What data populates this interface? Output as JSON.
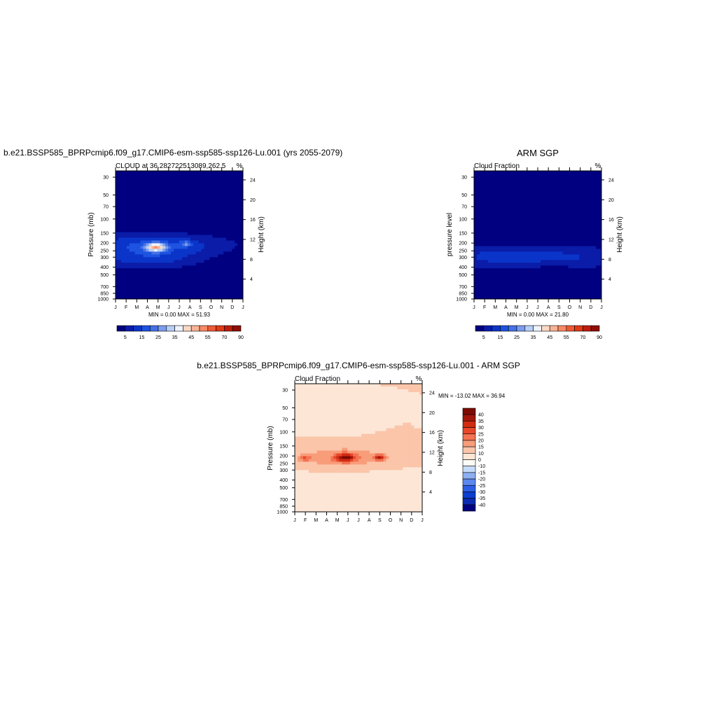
{
  "figure": {
    "left_title": "b.e21.BSSP585_BPRPcmip6.f09_g17.CMIP6-esm-ssp585-ssp126-Lu.001 (yrs 2055-2079)",
    "right_title": "ARM SGP",
    "diff_title": "b.e21.BSSP585_BPRPcmip6.f09_g17.CMIP6-esm-ssp585-ssp126-Lu.001 - ARM SGP"
  },
  "colors": {
    "seq": [
      "#000080",
      "#0a1ca8",
      "#0b35c9",
      "#1d53e0",
      "#4571e6",
      "#7c9ced",
      "#b6cff5",
      "#eef3fb",
      "#fbd8c4",
      "#f8b396",
      "#f68a66",
      "#ee5a36",
      "#e03a16",
      "#bd1d0c",
      "#8f0e06"
    ],
    "div": [
      "#000080",
      "#0a2aaf",
      "#0c3fd0",
      "#2d5fe6",
      "#5c88ed",
      "#8db0f2",
      "#c5dbf9",
      "#fdfbf5",
      "#fde6d6",
      "#fbc5aa",
      "#f89d7a",
      "#f37352",
      "#e9472b",
      "#d12c12",
      "#a3160a",
      "#7d0b04"
    ]
  },
  "chart_data": [
    {
      "type": "heatmap",
      "name": "model",
      "title": "CLOUD at 36.282722513089,262.5",
      "units": "%",
      "ylabel": "Pressure (mb)",
      "ylabel_right": "Height (km)",
      "x_ticks": [
        "J",
        "F",
        "M",
        "A",
        "M",
        "J",
        "J",
        "A",
        "S",
        "O",
        "N",
        "D",
        "J"
      ],
      "y_ticks": [
        30,
        50,
        70,
        100,
        150,
        200,
        250,
        300,
        400,
        500,
        700,
        850,
        1000
      ],
      "height_ticks": [
        4,
        8,
        12,
        16,
        20,
        24
      ],
      "ylim": [
        1000,
        25
      ],
      "stats": "MIN =   0.00 MAX =  51.93",
      "colorbar_levels": [
        5,
        15,
        25,
        35,
        45,
        55,
        70,
        90
      ],
      "levels": [
        0,
        5,
        10,
        15,
        20,
        25,
        30,
        35,
        40,
        45,
        50,
        55,
        60,
        70,
        80,
        90
      ],
      "field": {
        "bg": 1,
        "blobs": [
          {
            "c": [
              3.5,
              210
            ],
            "s": [
              7,
              0.32
            ],
            "a": 14
          },
          {
            "c": [
              3.8,
              225
            ],
            "s": [
              0.9,
              0.12
            ],
            "a": 34
          },
          {
            "c": [
              6.6,
              205
            ],
            "s": [
              0.5,
              0.08
            ],
            "a": 14
          },
          {
            "c": [
              3.0,
              320
            ],
            "s": [
              5,
              0.3
            ],
            "a": 10
          },
          {
            "c": [
              6.0,
              760
            ],
            "s": [
              5,
              0.3
            ],
            "a": -6
          }
        ]
      }
    },
    {
      "type": "heatmap",
      "name": "obs",
      "title": "Cloud Fraction",
      "units": "%",
      "ylabel": "pressure level",
      "ylabel_right": "Height (km)",
      "x_ticks": [
        "J",
        "F",
        "M",
        "A",
        "M",
        "J",
        "J",
        "A",
        "S",
        "O",
        "N",
        "D",
        "J"
      ],
      "y_ticks": [
        30,
        50,
        70,
        100,
        150,
        200,
        250,
        300,
        400,
        500,
        700,
        850,
        1000
      ],
      "height_ticks": [
        4,
        8,
        12,
        16,
        20,
        24
      ],
      "ylim": [
        1000,
        25
      ],
      "stats": "MIN =   0.00 MAX =  21.80",
      "colorbar_levels": [
        5,
        15,
        25,
        35,
        45,
        55,
        70,
        90
      ],
      "levels": [
        0,
        5,
        10,
        15,
        20,
        25,
        30,
        35,
        40,
        45,
        50,
        55,
        60,
        70,
        80,
        90
      ],
      "field": {
        "bg": 1,
        "blobs": [
          {
            "c": [
              6,
              300
            ],
            "s": [
              9,
              0.35
            ],
            "a": 11
          },
          {
            "c": [
              1.5,
              280
            ],
            "s": [
              2,
              0.25
            ],
            "a": 3
          },
          {
            "c": [
              7.5,
              450
            ],
            "s": [
              1.2,
              0.3
            ],
            "a": -5
          },
          {
            "c": [
              6.5,
              760
            ],
            "s": [
              0.5,
              0.08
            ],
            "a": -4
          }
        ]
      }
    },
    {
      "type": "heatmap",
      "name": "diff",
      "title": "Cloud Fraction",
      "units": "%",
      "ylabel": "Pressure (mb)",
      "ylabel_right": "Height (km)",
      "x_ticks": [
        "J",
        "F",
        "M",
        "A",
        "M",
        "J",
        "J",
        "A",
        "S",
        "O",
        "N",
        "D",
        "J"
      ],
      "y_ticks": [
        30,
        50,
        70,
        100,
        150,
        200,
        250,
        300,
        400,
        500,
        700,
        850,
        1000
      ],
      "height_ticks": [
        4,
        8,
        12,
        16,
        20,
        24
      ],
      "ylim": [
        1000,
        25
      ],
      "stats": "MIN = -13.02 MAX =  36.94",
      "colorbar_levels": [
        40,
        35,
        30,
        25,
        20,
        15,
        10,
        0,
        -10,
        -15,
        -20,
        -25,
        -30,
        -35,
        -40
      ],
      "levels": [
        -40,
        -35,
        -30,
        -25,
        -20,
        -15,
        -10,
        -5,
        5,
        10,
        15,
        20,
        25,
        30,
        35,
        40
      ],
      "field": {
        "bg": 5,
        "blobs": [
          {
            "c": [
              4.5,
              210
            ],
            "s": [
              4.5,
              0.3
            ],
            "a": 9
          },
          {
            "c": [
              4.8,
              210
            ],
            "s": [
              0.9,
              0.12
            ],
            "a": 24
          },
          {
            "c": [
              8.0,
              210
            ],
            "s": [
              0.5,
              0.08
            ],
            "a": 22
          },
          {
            "c": [
              1.0,
              215
            ],
            "s": [
              0.5,
              0.08
            ],
            "a": 12
          },
          {
            "c": [
              6,
              600
            ],
            "s": [
              12,
              0.45
            ],
            "a": -9
          },
          {
            "c": [
              3.2,
              80
            ],
            "s": [
              2.0,
              0.2
            ],
            "a": -9
          },
          {
            "c": [
              11.8,
              65
            ],
            "s": [
              0.3,
              0.1
            ],
            "a": -9
          },
          {
            "c": [
              2.5,
              880
            ],
            "s": [
              0.4,
              0.05
            ],
            "a": -4
          },
          {
            "c": [
              9.5,
              880
            ],
            "s": [
              0.6,
              0.06
            ],
            "a": -4
          }
        ]
      }
    }
  ]
}
